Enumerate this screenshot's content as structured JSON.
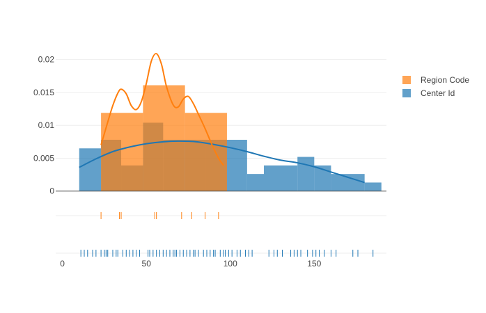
{
  "chart_data": {
    "type": "histogram",
    "legend": {
      "placement": "top-right"
    },
    "grid": true,
    "xlim": [
      -4,
      193
    ],
    "ylim": [
      -0.0013,
      0.0206
    ],
    "x_ticks": [
      0,
      50,
      100,
      150
    ],
    "x_tick_labels": [
      "0",
      "50",
      "100",
      "150"
    ],
    "y_ticks": [
      0,
      0.005,
      0.01,
      0.015,
      0.02
    ],
    "y_tick_labels": [
      "0",
      "0.005",
      "0.01",
      "0.015",
      "0.02"
    ],
    "series": [
      {
        "name": "Center Id",
        "color": "#1f77b4",
        "bins": [
          {
            "x0": 10,
            "x1": 23,
            "y": 0.0065
          },
          {
            "x0": 23,
            "x1": 35,
            "y": 0.0078
          },
          {
            "x0": 35,
            "x1": 48,
            "y": 0.0039
          },
          {
            "x0": 48,
            "x1": 60,
            "y": 0.0104
          },
          {
            "x0": 60,
            "x1": 73,
            "y": 0.0078
          },
          {
            "x0": 73,
            "x1": 85,
            "y": 0.0078
          },
          {
            "x0": 85,
            "x1": 98,
            "y": 0.0078
          },
          {
            "x0": 98,
            "x1": 110,
            "y": 0.0078
          },
          {
            "x0": 110,
            "x1": 120,
            "y": 0.0026
          },
          {
            "x0": 120,
            "x1": 140,
            "y": 0.0039
          },
          {
            "x0": 140,
            "x1": 150,
            "y": 0.0052
          },
          {
            "x0": 150,
            "x1": 160,
            "y": 0.0039
          },
          {
            "x0": 160,
            "x1": 180,
            "y": 0.0026
          },
          {
            "x0": 180,
            "x1": 190,
            "y": 0.0013
          }
        ],
        "kde": [
          [
            10,
            0.0036
          ],
          [
            20,
            0.0049
          ],
          [
            30,
            0.006
          ],
          [
            40,
            0.0067
          ],
          [
            50,
            0.0072
          ],
          [
            60,
            0.0075
          ],
          [
            70,
            0.0076
          ],
          [
            80,
            0.0075
          ],
          [
            90,
            0.0071
          ],
          [
            100,
            0.0066
          ],
          [
            110,
            0.006
          ],
          [
            120,
            0.0053
          ],
          [
            130,
            0.0047
          ],
          [
            140,
            0.0043
          ],
          [
            150,
            0.0037
          ],
          [
            160,
            0.0029
          ],
          [
            170,
            0.0021
          ],
          [
            180,
            0.0013
          ]
        ],
        "rug": [
          11,
          13,
          15,
          18,
          20,
          23,
          25,
          26,
          27,
          30,
          32,
          33,
          36,
          38,
          40,
          42,
          44,
          46,
          51,
          52,
          54,
          56,
          58,
          60,
          62,
          64,
          66,
          67,
          68,
          70,
          72,
          74,
          76,
          78,
          79,
          81,
          84,
          86,
          88,
          90,
          91,
          94,
          96,
          97,
          99,
          101,
          104,
          106,
          109,
          111,
          113,
          123,
          126,
          128,
          131,
          136,
          138,
          140,
          142,
          146,
          149,
          151,
          153,
          156,
          160,
          163,
          173,
          176,
          185
        ]
      },
      {
        "name": "Region Code",
        "color": "#ff7f0e",
        "bins": [
          {
            "x0": 23,
            "x1": 48,
            "y": 0.0119
          },
          {
            "x0": 48,
            "x1": 73,
            "y": 0.0161
          },
          {
            "x0": 73,
            "x1": 98,
            "y": 0.0119
          }
        ],
        "kde": [
          [
            23,
            0.007
          ],
          [
            27,
            0.0105
          ],
          [
            30,
            0.013
          ],
          [
            33,
            0.0149
          ],
          [
            35,
            0.0155
          ],
          [
            38,
            0.0148
          ],
          [
            41,
            0.013
          ],
          [
            44,
            0.0124
          ],
          [
            47,
            0.0136
          ],
          [
            50,
            0.0164
          ],
          [
            53,
            0.0198
          ],
          [
            56,
            0.0209
          ],
          [
            59,
            0.0193
          ],
          [
            62,
            0.0159
          ],
          [
            66,
            0.0131
          ],
          [
            69,
            0.0128
          ],
          [
            72,
            0.014
          ],
          [
            75,
            0.0144
          ],
          [
            78,
            0.0133
          ],
          [
            81,
            0.0117
          ],
          [
            85,
            0.0095
          ],
          [
            89,
            0.0071
          ],
          [
            93,
            0.005
          ],
          [
            96,
            0.0039
          ]
        ],
        "rug": [
          23,
          34,
          35,
          55,
          56,
          71,
          77,
          85,
          93
        ]
      }
    ]
  }
}
